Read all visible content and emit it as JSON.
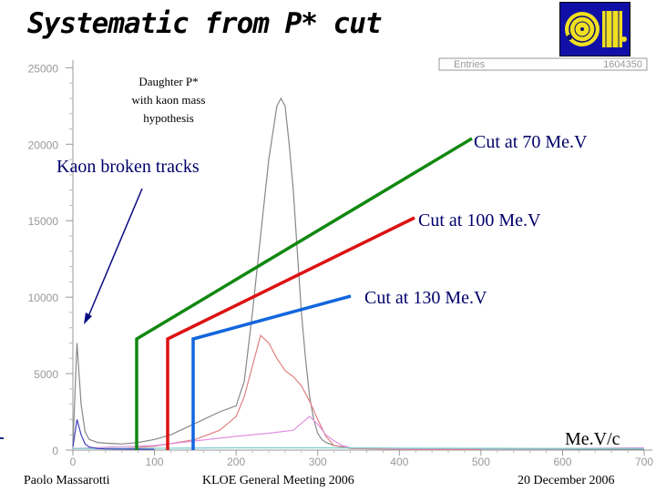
{
  "slide": {
    "title": "Systematic from P* cut",
    "footer_left": "Paolo Massarotti",
    "footer_center": "KLOE General Meeting 2006",
    "footer_right": "20 December 2006"
  },
  "annotations": {
    "daughter_label": [
      "Daughter P*",
      "with kaon mass",
      "hypothesis"
    ],
    "kaon_broken": "Kaon broken tracks",
    "cut70": "Cut at  70 Me.V",
    "cut100": "Cut at 100 Me.V",
    "cut130": "Cut at 130 Me.V",
    "unit": "Me.V/c"
  },
  "colors": {
    "cut70": "#118811",
    "cut100": "#dd1111",
    "cut130": "#1166dd",
    "arrow": "#0a0a80",
    "hist_main": "#888888",
    "hist_red": "#e08080",
    "hist_magenta": "#e090e0",
    "hist_cyan": "#7ad0d0",
    "hist_blue": "#4040c0"
  },
  "chart_data": {
    "type": "line",
    "x_ticks": [
      0,
      100,
      200,
      300,
      400,
      500,
      600,
      700
    ],
    "y_ticks": [
      0,
      5000,
      10000,
      15000,
      20000,
      25000
    ],
    "xlim": [
      0,
      710
    ],
    "ylim": [
      0,
      25500
    ],
    "stats_label": "Entries",
    "stats_value": "1604350",
    "cuts": [
      70,
      100,
      130
    ],
    "series": [
      {
        "key": "main",
        "x": [
          0,
          5,
          10,
          15,
          20,
          30,
          40,
          60,
          80,
          100,
          120,
          140,
          160,
          180,
          200,
          210,
          220,
          230,
          240,
          250,
          255,
          260,
          265,
          270,
          275,
          280,
          285,
          290,
          295,
          300,
          305,
          310,
          320,
          340,
          400,
          500,
          600,
          700
        ],
        "y": [
          300,
          7000,
          3000,
          1200,
          700,
          500,
          450,
          400,
          500,
          700,
          1000,
          1500,
          2000,
          2500,
          2900,
          4500,
          9000,
          14000,
          19000,
          22500,
          23000,
          22500,
          20000,
          17000,
          13000,
          9000,
          6000,
          3500,
          2000,
          1100,
          700,
          500,
          300,
          150,
          100,
          80,
          70,
          60
        ]
      },
      {
        "key": "red",
        "x": [
          60,
          100,
          150,
          180,
          200,
          210,
          220,
          230,
          240,
          250,
          260,
          270,
          280,
          290,
          300,
          310,
          320,
          340,
          400,
          500
        ],
        "y": [
          100,
          250,
          700,
          1300,
          2200,
          3500,
          5500,
          7500,
          7000,
          6000,
          5200,
          4800,
          4200,
          3200,
          2000,
          900,
          300,
          100,
          60,
          40
        ]
      },
      {
        "key": "magenta",
        "x": [
          0,
          100,
          150,
          200,
          240,
          270,
          290,
          300,
          310,
          320,
          330,
          340,
          400,
          500,
          600,
          700
        ],
        "y": [
          100,
          300,
          600,
          900,
          1100,
          1300,
          2200,
          1700,
          1000,
          600,
          300,
          150,
          100,
          100,
          100,
          150
        ]
      },
      {
        "key": "cyan",
        "x": [
          0,
          100,
          200,
          300,
          400,
          500,
          600,
          700
        ],
        "y": [
          100,
          120,
          150,
          150,
          130,
          120,
          110,
          100
        ]
      },
      {
        "key": "blue",
        "x": [
          0,
          5,
          10,
          15,
          20,
          30,
          40,
          80,
          100
        ],
        "y": [
          200,
          2000,
          1000,
          400,
          200,
          100,
          80,
          60,
          50
        ]
      }
    ]
  }
}
